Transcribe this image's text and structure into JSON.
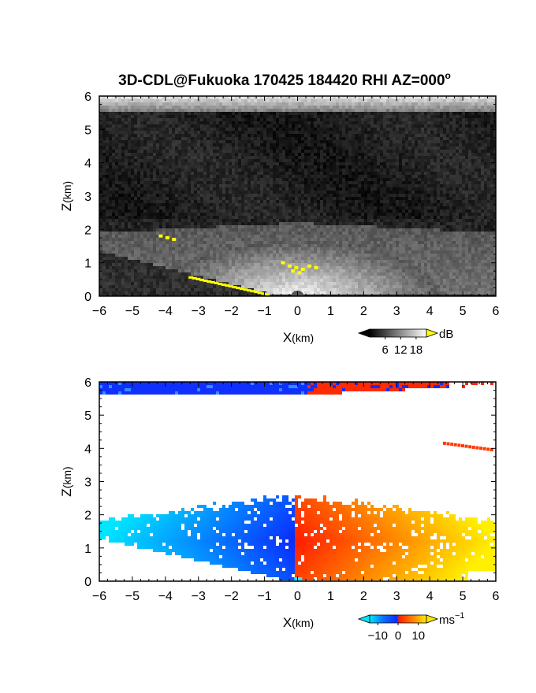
{
  "title": "3D-CDL@Fukuoka 170425 184420 RHI AZ=000",
  "title_degree": "o",
  "chart_data": [
    {
      "type": "heatmap",
      "panel": "reflectivity",
      "xlabel": "X",
      "xunit": "(km)",
      "ylabel": "Z",
      "yunit": "(km)",
      "xlim": [
        -6,
        6
      ],
      "ylim": [
        0,
        6
      ],
      "xticks": [
        "−6",
        "−5",
        "−4",
        "−3",
        "−2",
        "−1",
        "0",
        "1",
        "2",
        "3",
        "4",
        "5",
        "6"
      ],
      "yticks": [
        "0",
        "1",
        "2",
        "3",
        "4",
        "5",
        "6"
      ],
      "colorbar": {
        "label": "dB",
        "ticks": [
          "6",
          "12",
          "18"
        ],
        "range": [
          0,
          22
        ]
      },
      "colors": {
        "low": "#000000",
        "high": "#ffffff",
        "over": "#ffff00"
      }
    },
    {
      "type": "heatmap",
      "panel": "doppler-velocity",
      "xlabel": "X",
      "xunit": "(km)",
      "ylabel": "Z",
      "yunit": "(km)",
      "xlim": [
        -6,
        6
      ],
      "ylim": [
        0,
        6
      ],
      "xticks": [
        "−6",
        "−5",
        "−4",
        "−3",
        "−2",
        "−1",
        "0",
        "1",
        "2",
        "3",
        "4",
        "5",
        "6"
      ],
      "yticks": [
        "0",
        "1",
        "2",
        "3",
        "4",
        "5",
        "6"
      ],
      "colorbar": {
        "label": "ms",
        "label_exp": "−1",
        "ticks": [
          "−10",
          "0",
          "10"
        ],
        "range": [
          -14,
          14
        ]
      },
      "colors": {
        "neg_far": "#00e5ff",
        "neg": "#0a3cff",
        "pos": "#ff2a00",
        "pos_far": "#ffe600"
      }
    }
  ]
}
